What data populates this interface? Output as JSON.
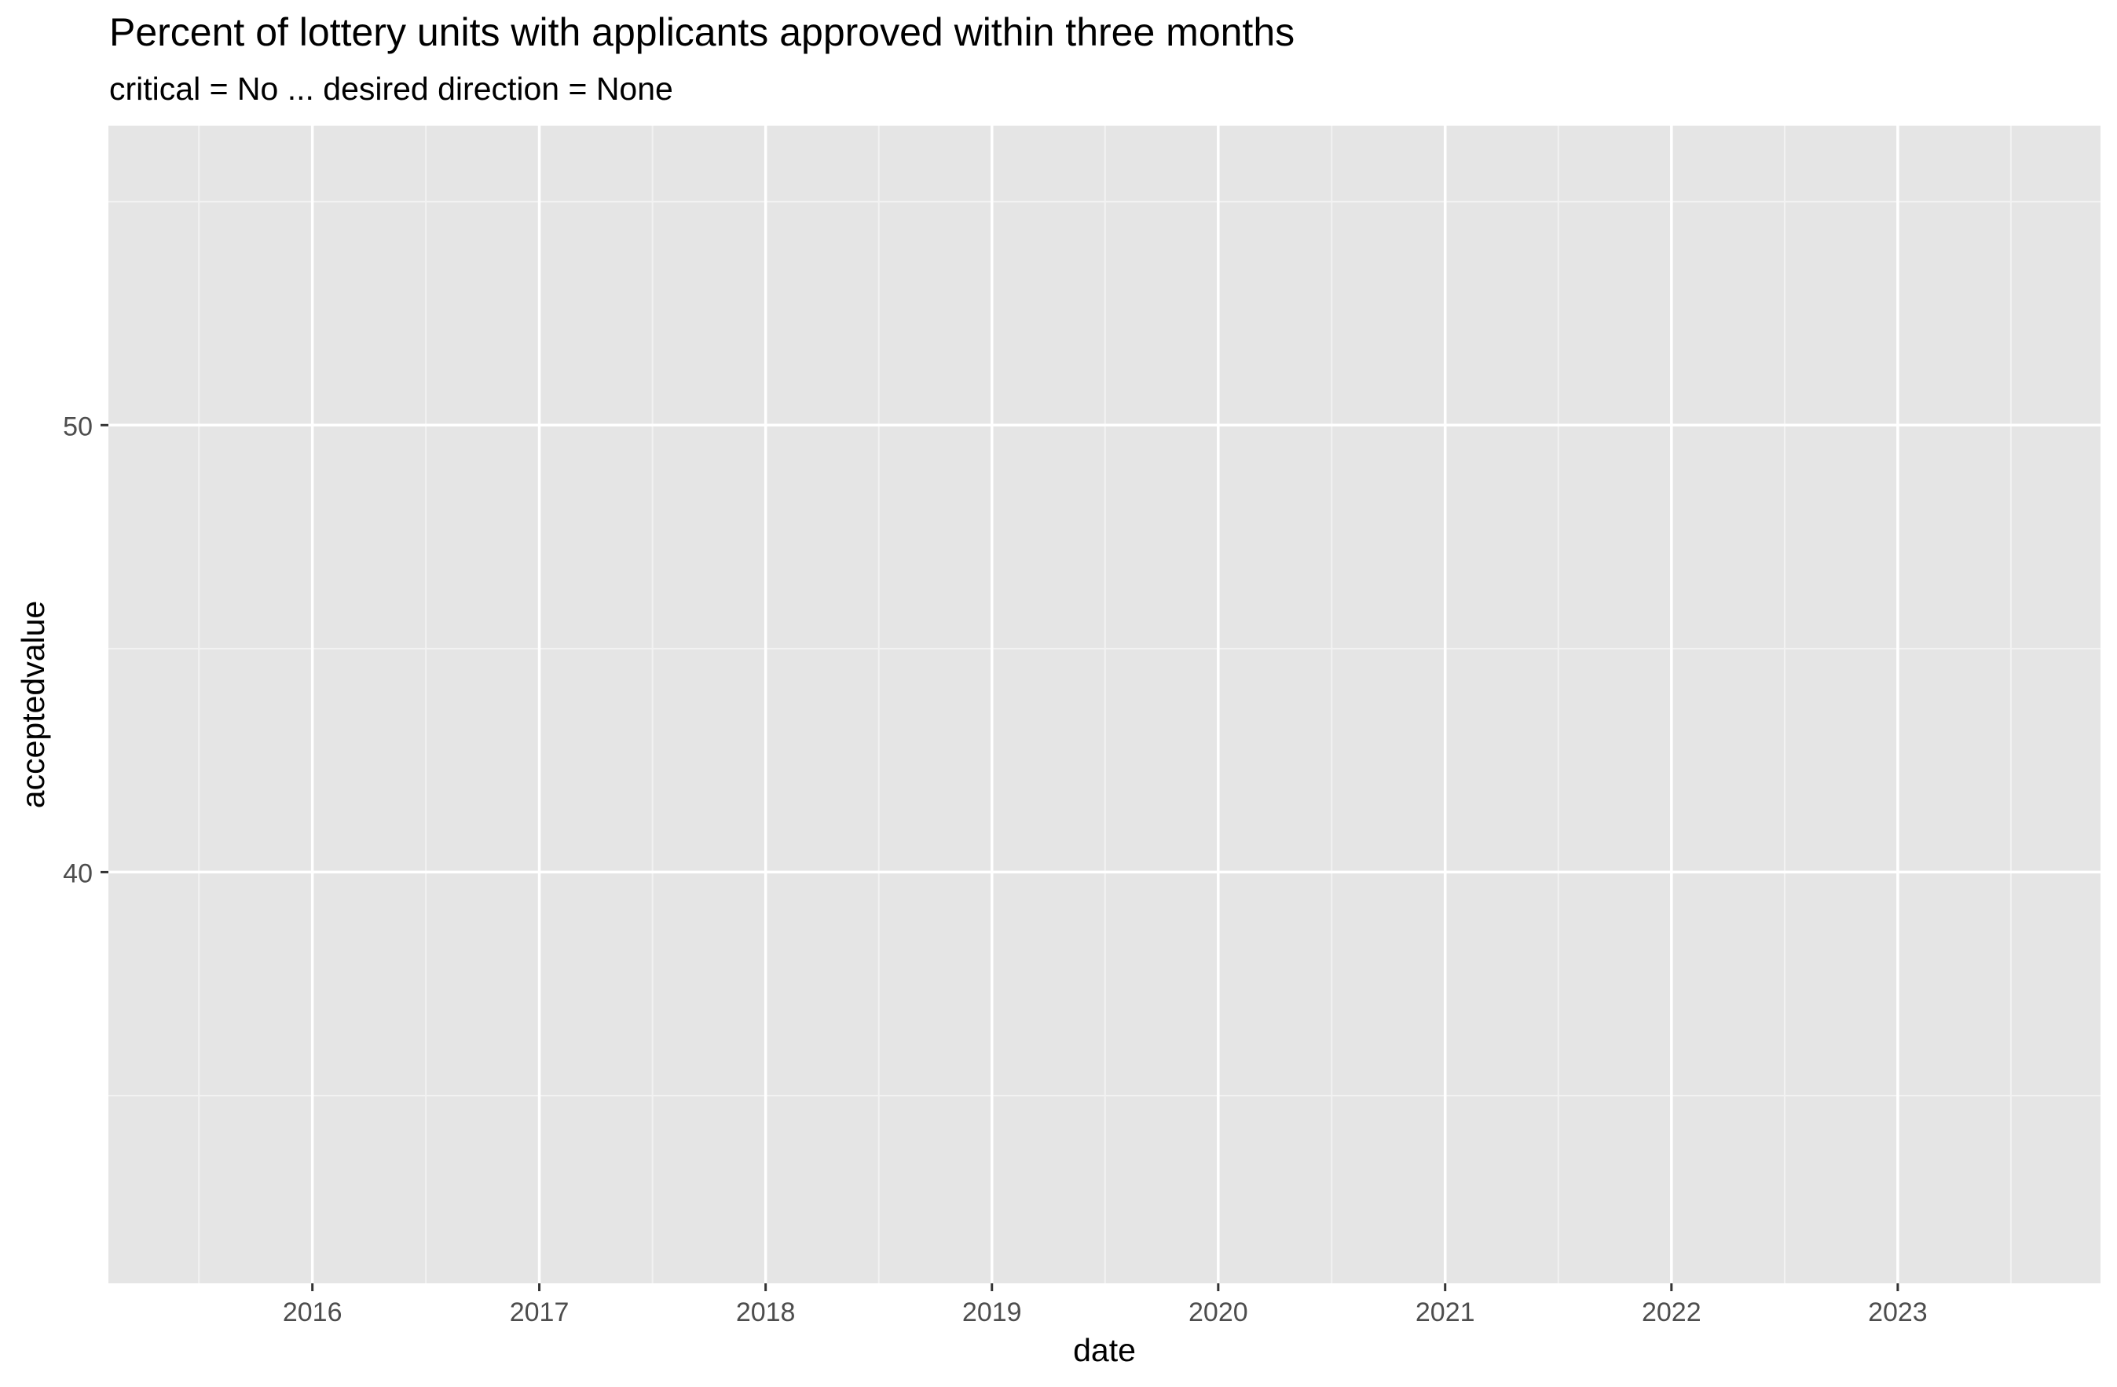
{
  "chart_data": {
    "type": "line",
    "title": "Percent of lottery units with applicants approved within three months",
    "subtitle": "critical = No ... desired direction = None",
    "xlabel": "date",
    "ylabel": "acceptedvalue",
    "x_ticks": [
      "2016",
      "2017",
      "2018",
      "2019",
      "2020",
      "2021",
      "2022",
      "2023"
    ],
    "y_ticks": [
      40,
      50
    ],
    "xlim": [
      "2015-02-06",
      "2023-11-24"
    ],
    "ylim": [
      30.8,
      56.7
    ],
    "series": [],
    "grid": true,
    "legend": "none",
    "colors": {
      "panel_background": "#e5e5e5",
      "grid_major": "#ffffff",
      "grid_minor": "#f2f2f2",
      "tick_text": "#4d4d4d",
      "text": "#000000"
    }
  }
}
